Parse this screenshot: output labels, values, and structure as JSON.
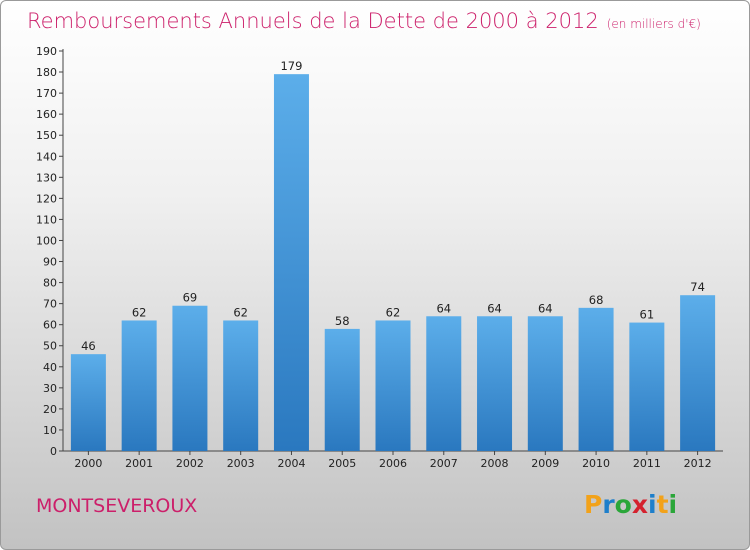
{
  "title": "Remboursements Annuels de la Dette de 2000 à 2012",
  "unit_label": "(en milliers d'€)",
  "city": "MONTSEVEROUX",
  "brand": {
    "letters": [
      "P",
      "r",
      "o",
      "x",
      "i",
      "t",
      "i"
    ],
    "colors": [
      "#f2a21a",
      "#1e7fcb",
      "#2aa639",
      "#d4222e",
      "#1e7fcb",
      "#f2a21a",
      "#2aa639"
    ]
  },
  "colors": {
    "title": "#cc1f6a",
    "bar_top": "#5caeea",
    "bar_bottom": "#2a78bf"
  },
  "chart_data": {
    "type": "bar",
    "title": "Remboursements Annuels de la Dette de 2000 à 2012",
    "categories": [
      "2000",
      "2001",
      "2002",
      "2003",
      "2004",
      "2005",
      "2006",
      "2007",
      "2008",
      "2009",
      "2010",
      "2011",
      "2012"
    ],
    "values": [
      46,
      62,
      69,
      62,
      179,
      58,
      62,
      64,
      64,
      64,
      68,
      61,
      74
    ],
    "ylim": [
      0,
      190
    ],
    "yticks": [
      0,
      10,
      20,
      30,
      40,
      50,
      60,
      70,
      80,
      90,
      100,
      110,
      120,
      130,
      140,
      150,
      160,
      170,
      180,
      190
    ],
    "grid": false,
    "xlabel": "",
    "ylabel": ""
  }
}
